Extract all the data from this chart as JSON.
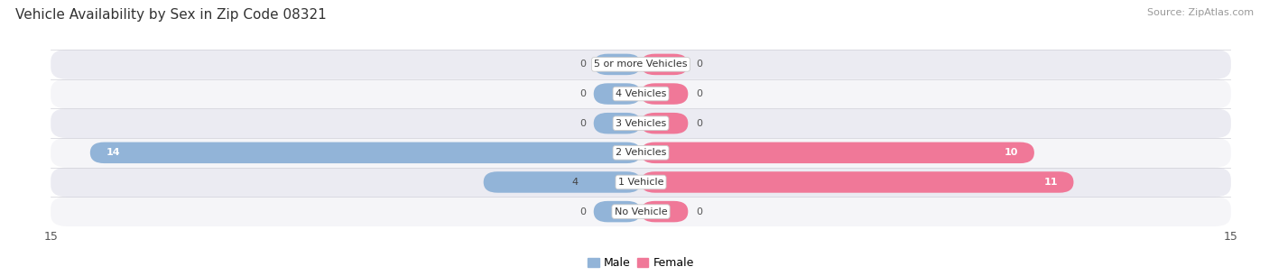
{
  "title": "Vehicle Availability by Sex in Zip Code 08321",
  "source": "Source: ZipAtlas.com",
  "categories": [
    "No Vehicle",
    "1 Vehicle",
    "2 Vehicles",
    "3 Vehicles",
    "4 Vehicles",
    "5 or more Vehicles"
  ],
  "male_values": [
    0,
    4,
    14,
    0,
    0,
    0
  ],
  "female_values": [
    0,
    11,
    10,
    0,
    0,
    0
  ],
  "male_color": "#92b4d8",
  "female_color": "#f07898",
  "row_colors": [
    "#f5f5f8",
    "#ebebf2"
  ],
  "axis_max": 15,
  "title_fontsize": 11,
  "source_fontsize": 8,
  "cat_fontsize": 8,
  "val_fontsize": 8,
  "legend_male": "Male",
  "legend_female": "Female",
  "stub_size": 1.2
}
